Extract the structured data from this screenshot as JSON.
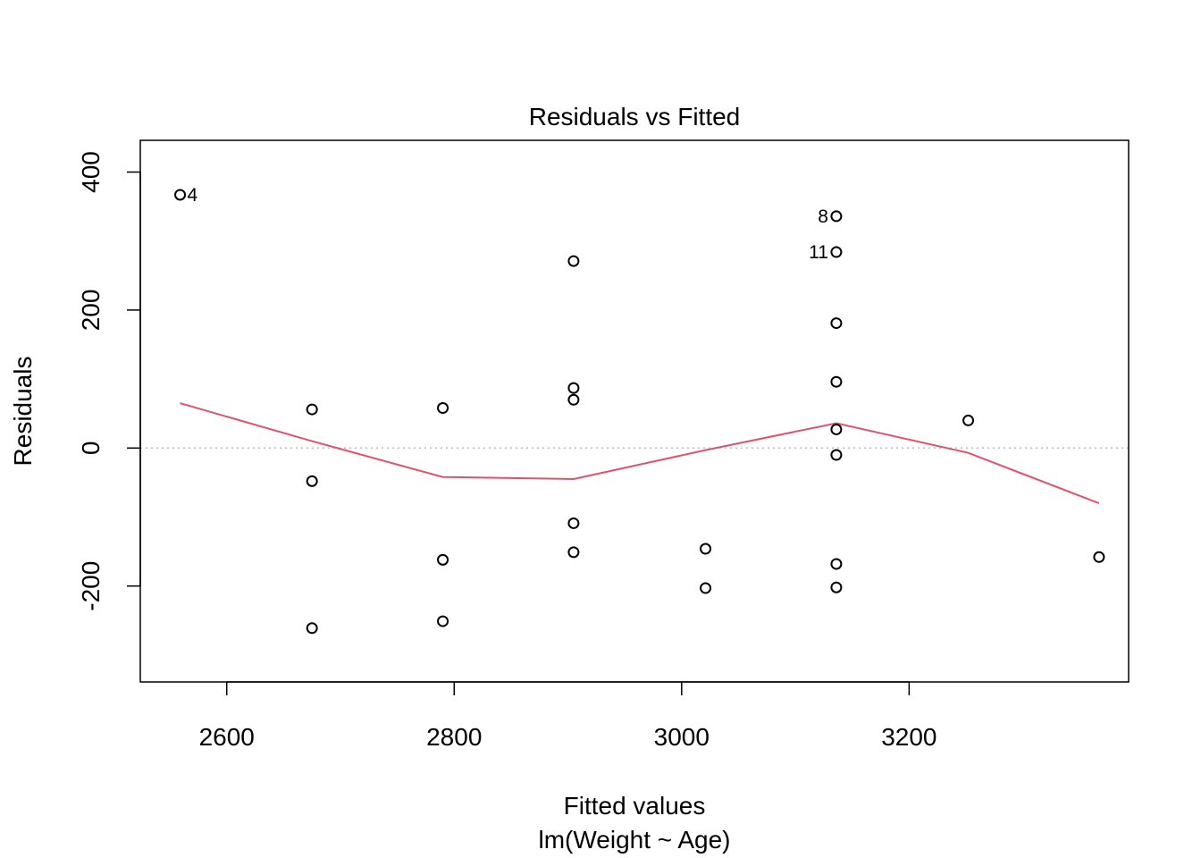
{
  "chart_data": {
    "type": "scatter",
    "title": "Residuals vs Fitted",
    "xlabel": "Fitted values",
    "subtitle": "lm(Weight ~ Age)",
    "ylabel": "Residuals",
    "xlim": [
      2524,
      3393
    ],
    "ylim": [
      -339,
      446
    ],
    "xticks": [
      2600,
      2800,
      3000,
      3200
    ],
    "xtick_labels": [
      "2600",
      "2800",
      "3000",
      "3200"
    ],
    "yticks": [
      -200,
      0,
      200,
      400
    ],
    "ytick_labels": [
      "-200",
      "0",
      "200",
      "400"
    ],
    "points": [
      {
        "x": 2559,
        "y": 367,
        "label": "4"
      },
      {
        "x": 2675,
        "y": 56
      },
      {
        "x": 2675,
        "y": -48
      },
      {
        "x": 2675,
        "y": -261
      },
      {
        "x": 2790,
        "y": 58
      },
      {
        "x": 2790,
        "y": -162
      },
      {
        "x": 2790,
        "y": -251
      },
      {
        "x": 2905,
        "y": 271
      },
      {
        "x": 2905,
        "y": 87
      },
      {
        "x": 2905,
        "y": 70
      },
      {
        "x": 2905,
        "y": -109
      },
      {
        "x": 2905,
        "y": -151
      },
      {
        "x": 3021,
        "y": -146
      },
      {
        "x": 3021,
        "y": -203
      },
      {
        "x": 3136,
        "y": 336,
        "label": "8"
      },
      {
        "x": 3136,
        "y": 284,
        "label": "11"
      },
      {
        "x": 3136,
        "y": 181
      },
      {
        "x": 3136,
        "y": 96
      },
      {
        "x": 3136,
        "y": 27
      },
      {
        "x": 3136,
        "y": -10
      },
      {
        "x": 3136,
        "y": -168
      },
      {
        "x": 3136,
        "y": -202
      },
      {
        "x": 3252,
        "y": 40
      },
      {
        "x": 3367,
        "y": -158
      }
    ],
    "smoother": {
      "color": "#DF536B",
      "x": [
        2559,
        2675,
        2790,
        2905,
        3021,
        3136,
        3252,
        3367
      ],
      "y": [
        65,
        10,
        -42,
        -45,
        -3,
        36,
        -7,
        -80
      ]
    },
    "reference_line": {
      "y": 0,
      "style": "dotted",
      "color": "#BEBEBE"
    },
    "grid": false,
    "legend": "none"
  }
}
